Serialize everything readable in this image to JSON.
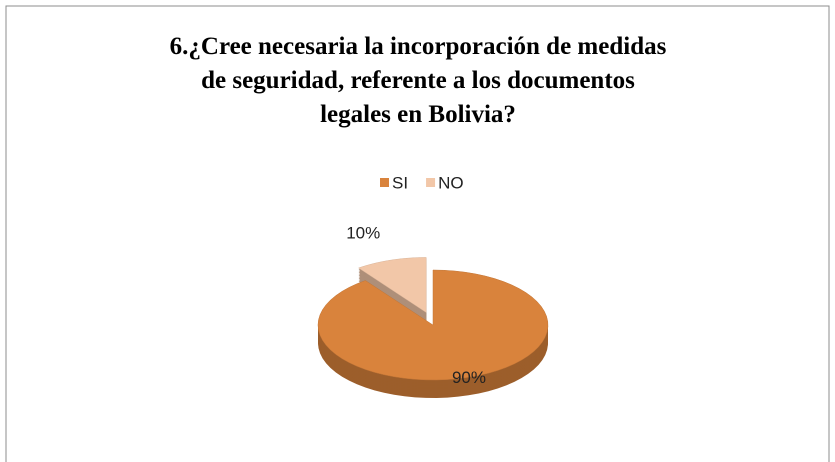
{
  "chart_data": {
    "type": "pie3d",
    "title": "6.¿Cree necesaria la incorporación de medidas de seguridad, referente a los documentos legales en Bolivia?",
    "categories": [
      "SI",
      "NO"
    ],
    "values": [
      90,
      10
    ],
    "value_labels": [
      "90%",
      "10%"
    ],
    "colors": [
      "#d9833c",
      "#f2c7a8"
    ],
    "legend": "top"
  }
}
